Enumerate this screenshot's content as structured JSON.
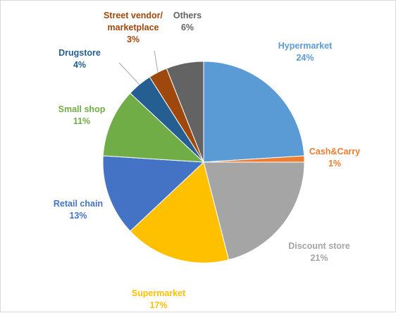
{
  "chart_data": {
    "type": "pie",
    "title": "",
    "slices": [
      {
        "label": "Hypermarket",
        "value": 24,
        "value_label": "24%",
        "color": "#5b9bd5"
      },
      {
        "label": "Cash&Carry",
        "value": 1,
        "value_label": "1%",
        "color": "#ed7d31"
      },
      {
        "label": "Discount store",
        "value": 21,
        "value_label": "21%",
        "color": "#a5a5a5"
      },
      {
        "label": "Supermarket",
        "value": 17,
        "value_label": "17%",
        "color": "#ffc000"
      },
      {
        "label": "Retail chain",
        "value": 13,
        "value_label": "13%",
        "color": "#4472c4"
      },
      {
        "label": "Small shop",
        "value": 11,
        "value_label": "11%",
        "color": "#70ad47"
      },
      {
        "label": "Drugstore",
        "value": 4,
        "value_label": "4%",
        "color": "#255e91"
      },
      {
        "label": "Street vendor/\nmarketplace",
        "value": 3,
        "value_label": "3%",
        "color": "#9e480e"
      },
      {
        "label": "Others",
        "value": 6,
        "value_label": "6%",
        "color": "#636363"
      }
    ],
    "start": "12 o'clock",
    "direction": "clockwise",
    "legend": "none"
  }
}
